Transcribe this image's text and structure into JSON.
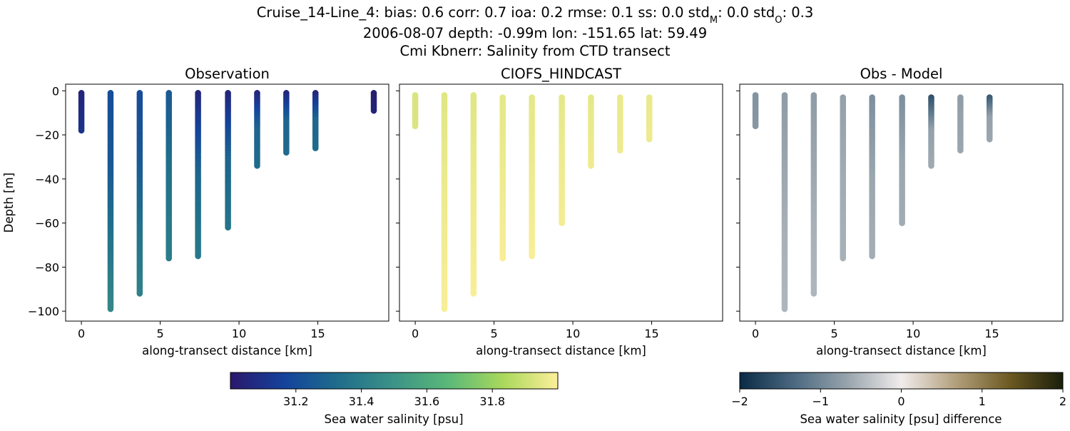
{
  "title_lines": [
    "Cruise_14-Line_4: bias: 0.6  corr: 0.7  ioa: 0.2  rmse: 0.1  ss: 0.0  std",
    "2006-08-07 depth: -0.99m lon: -151.65 lat: 59.49",
    "Cmi Kbnerr: Salinity from CTD transect"
  ],
  "title_stat_m": {
    "sub": "M",
    "value": ": 0.0  std"
  },
  "title_stat_o": {
    "sub": "O",
    "value": ": 0.3"
  },
  "chart_data": [
    {
      "type": "scatter",
      "title": "Observation",
      "xlabel": "along-transect distance [km]",
      "ylabel": "Depth [m]",
      "xlim": [
        -1,
        19.5
      ],
      "ylim": [
        -104.5,
        3
      ],
      "xticks": [
        0,
        5,
        10,
        15
      ],
      "yticks": [
        0,
        -20,
        -40,
        -60,
        -80,
        -100
      ],
      "colorbar": "obs",
      "profiles": [
        {
          "x": 0.0,
          "top": -1,
          "bottom": -18,
          "values": [
            31.05,
            31.1
          ]
        },
        {
          "x": 1.85,
          "top": -1,
          "bottom": -99,
          "values": [
            31.2,
            31.25,
            31.35,
            31.45
          ]
        },
        {
          "x": 3.7,
          "top": -1,
          "bottom": -92,
          "values": [
            31.2,
            31.25,
            31.35,
            31.42
          ]
        },
        {
          "x": 5.55,
          "top": -1,
          "bottom": -76,
          "values": [
            31.25,
            31.35,
            31.4
          ]
        },
        {
          "x": 7.4,
          "top": -1,
          "bottom": -75,
          "values": [
            31.05,
            31.3,
            31.38
          ]
        },
        {
          "x": 9.3,
          "top": -1,
          "bottom": -62,
          "values": [
            31.05,
            31.3,
            31.36
          ]
        },
        {
          "x": 11.15,
          "top": -1,
          "bottom": -34,
          "values": [
            31.05,
            31.3,
            31.32
          ]
        },
        {
          "x": 13.0,
          "top": -1,
          "bottom": -28,
          "values": [
            31.05,
            31.3,
            31.32
          ]
        },
        {
          "x": 14.85,
          "top": -1,
          "bottom": -26,
          "values": [
            31.05,
            31.3,
            31.32
          ]
        },
        {
          "x": 18.55,
          "top": -1,
          "bottom": -9,
          "values": [
            31.02,
            31.04
          ]
        }
      ]
    },
    {
      "type": "scatter",
      "title": "CIOFS_HINDCAST",
      "xlabel": "along-transect distance [km]",
      "ylabel": "",
      "xlim": [
        -1,
        19.5
      ],
      "ylim": [
        -104.5,
        3
      ],
      "xticks": [
        0,
        5,
        10,
        15
      ],
      "yticks": [
        0,
        -20,
        -40,
        -60,
        -80,
        -100
      ],
      "colorbar": "obs",
      "profiles": [
        {
          "x": 0.0,
          "top": -2,
          "bottom": -16,
          "values": [
            31.93,
            31.93
          ]
        },
        {
          "x": 1.85,
          "top": -2,
          "bottom": -99,
          "values": [
            31.94,
            31.97,
            31.99
          ]
        },
        {
          "x": 3.7,
          "top": -2,
          "bottom": -92,
          "values": [
            31.94,
            31.97,
            31.99
          ]
        },
        {
          "x": 5.55,
          "top": -3,
          "bottom": -76,
          "values": [
            31.95,
            31.97,
            31.99
          ]
        },
        {
          "x": 7.4,
          "top": -3,
          "bottom": -75,
          "values": [
            31.95,
            31.97,
            31.99
          ]
        },
        {
          "x": 9.3,
          "top": -3,
          "bottom": -60,
          "values": [
            31.95,
            31.97,
            31.98
          ]
        },
        {
          "x": 11.15,
          "top": -3,
          "bottom": -34,
          "values": [
            31.95,
            31.97
          ]
        },
        {
          "x": 13.0,
          "top": -3,
          "bottom": -27,
          "values": [
            31.96,
            31.97
          ]
        },
        {
          "x": 14.85,
          "top": -3,
          "bottom": -22,
          "values": [
            31.96,
            31.97
          ]
        }
      ]
    },
    {
      "type": "scatter",
      "title": "Obs - Model",
      "xlabel": "along-transect distance [km]",
      "ylabel": "",
      "xlim": [
        -1,
        19.5
      ],
      "ylim": [
        -104.5,
        3
      ],
      "xticks": [
        0,
        5,
        10,
        15
      ],
      "yticks": [
        0,
        -20,
        -40,
        -60,
        -80,
        -100
      ],
      "colorbar": "diff",
      "profiles": [
        {
          "x": 0.0,
          "top": -2,
          "bottom": -16,
          "values": [
            -0.85,
            -0.82
          ]
        },
        {
          "x": 1.85,
          "top": -2,
          "bottom": -99,
          "values": [
            -0.75,
            -0.65,
            -0.55,
            -0.5
          ]
        },
        {
          "x": 3.7,
          "top": -2,
          "bottom": -92,
          "values": [
            -0.75,
            -0.65,
            -0.55,
            -0.5
          ]
        },
        {
          "x": 5.55,
          "top": -3,
          "bottom": -76,
          "values": [
            -0.7,
            -0.6,
            -0.55
          ]
        },
        {
          "x": 7.4,
          "top": -3,
          "bottom": -75,
          "values": [
            -0.9,
            -0.65,
            -0.58
          ]
        },
        {
          "x": 9.3,
          "top": -3,
          "bottom": -60,
          "values": [
            -0.9,
            -0.65,
            -0.6
          ]
        },
        {
          "x": 11.15,
          "top": -3,
          "bottom": -34,
          "values": [
            -1.6,
            -0.7,
            -0.62
          ]
        },
        {
          "x": 13.0,
          "top": -3,
          "bottom": -27,
          "values": [
            -0.75,
            -0.68,
            -0.65
          ]
        },
        {
          "x": 14.85,
          "top": -3,
          "bottom": -22,
          "values": [
            -1.5,
            -0.7,
            -0.65
          ]
        }
      ]
    }
  ],
  "colorbars": {
    "obs": {
      "label": "Sea water salinity [psu]",
      "range": [
        31.0,
        32.0
      ],
      "ticks": [
        "31.2",
        "31.4",
        "31.6",
        "31.8"
      ],
      "tick_values": [
        31.2,
        31.4,
        31.6,
        31.8
      ],
      "colormap": "haline",
      "colors": [
        "#2a186c",
        "#14439c",
        "#206e8b",
        "#3c9387",
        "#5ab978",
        "#aad85c",
        "#fdef9a"
      ]
    },
    "diff": {
      "label": "Sea water salinity [psu] difference",
      "range": [
        -2,
        2
      ],
      "ticks": [
        "−2",
        "−1",
        "0",
        "1",
        "2"
      ],
      "tick_values": [
        -2,
        -1,
        0,
        1,
        2
      ],
      "colormap": "diff",
      "colors": [
        "#0a2a45",
        "#4a6880",
        "#98a4ad",
        "#f1ecec",
        "#b3a07d",
        "#6d5a23",
        "#1a1f0a"
      ]
    }
  }
}
